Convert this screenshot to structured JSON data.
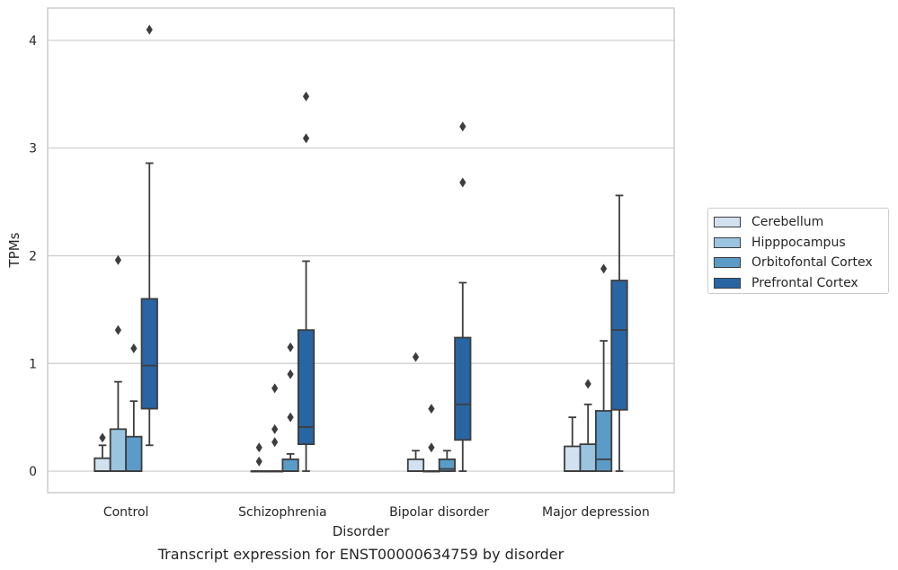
{
  "chart_data": {
    "type": "box",
    "title": "",
    "caption": "Transcript expression for ENST00000634759 by disorder",
    "xlabel": "Disorder",
    "ylabel": "TPMs",
    "ylim": [
      -0.2,
      4.3
    ],
    "yticks": [
      0,
      1,
      2,
      3,
      4
    ],
    "grid": "horizontal",
    "legend_position": "right",
    "categories": [
      "Control",
      "Schizophrenia",
      "Bipolar disorder",
      "Major depression"
    ],
    "series": [
      {
        "name": "Cerebellum",
        "color": "#d1e1f0",
        "boxes": [
          {
            "whisker_low": 0,
            "q1": 0,
            "median": 0,
            "q3": 0.12,
            "whisker_high": 0.24,
            "outliers": [
              0.31
            ]
          },
          {
            "whisker_low": 0,
            "q1": 0,
            "median": 0,
            "q3": 0,
            "whisker_high": 0,
            "outliers": [
              0.09,
              0.22
            ]
          },
          {
            "whisker_low": 0,
            "q1": 0,
            "median": 0,
            "q3": 0.11,
            "whisker_high": 0.19,
            "outliers": [
              1.06
            ]
          },
          {
            "whisker_low": 0,
            "q1": 0,
            "median": 0,
            "q3": 0.23,
            "whisker_high": 0.5,
            "outliers": []
          }
        ]
      },
      {
        "name": "Hipppocampus",
        "color": "#9ac4df",
        "boxes": [
          {
            "whisker_low": 0,
            "q1": 0,
            "median": 0,
            "q3": 0.39,
            "whisker_high": 0.83,
            "outliers": [
              1.31,
              1.96
            ]
          },
          {
            "whisker_low": 0,
            "q1": 0,
            "median": 0,
            "q3": 0,
            "whisker_high": 0,
            "outliers": [
              0.27,
              0.39,
              0.77
            ]
          },
          {
            "whisker_low": 0,
            "q1": 0,
            "median": 0,
            "q3": 0,
            "whisker_high": 0,
            "outliers": [
              0.22,
              0.58
            ]
          },
          {
            "whisker_low": 0,
            "q1": 0,
            "median": 0,
            "q3": 0.25,
            "whisker_high": 0.62,
            "outliers": [
              0.81
            ]
          }
        ]
      },
      {
        "name": "Orbitofontal Cortex",
        "color": "#5a9bc8",
        "boxes": [
          {
            "whisker_low": 0,
            "q1": 0,
            "median": 0,
            "q3": 0.32,
            "whisker_high": 0.65,
            "outliers": [
              1.14
            ]
          },
          {
            "whisker_low": 0,
            "q1": 0,
            "median": 0,
            "q3": 0.11,
            "whisker_high": 0.16,
            "outliers": [
              0.5,
              0.9,
              1.15
            ]
          },
          {
            "whisker_low": 0,
            "q1": 0,
            "median": 0.02,
            "q3": 0.11,
            "whisker_high": 0.19,
            "outliers": []
          },
          {
            "whisker_low": 0,
            "q1": 0,
            "median": 0.11,
            "q3": 0.56,
            "whisker_high": 1.21,
            "outliers": [
              1.88
            ]
          }
        ]
      },
      {
        "name": "Prefrontal Cortex",
        "color": "#2865a2",
        "boxes": [
          {
            "whisker_low": 0.24,
            "q1": 0.58,
            "median": 0.98,
            "q3": 1.6,
            "whisker_high": 2.86,
            "outliers": [
              4.1
            ]
          },
          {
            "whisker_low": 0,
            "q1": 0.25,
            "median": 0.41,
            "q3": 1.31,
            "whisker_high": 1.95,
            "outliers": [
              3.09,
              3.48
            ]
          },
          {
            "whisker_low": 0,
            "q1": 0.29,
            "median": 0.62,
            "q3": 1.24,
            "whisker_high": 1.75,
            "outliers": [
              2.68,
              3.2
            ]
          },
          {
            "whisker_low": 0,
            "q1": 0.57,
            "median": 1.31,
            "q3": 1.77,
            "whisker_high": 2.56,
            "outliers": []
          }
        ]
      }
    ]
  }
}
